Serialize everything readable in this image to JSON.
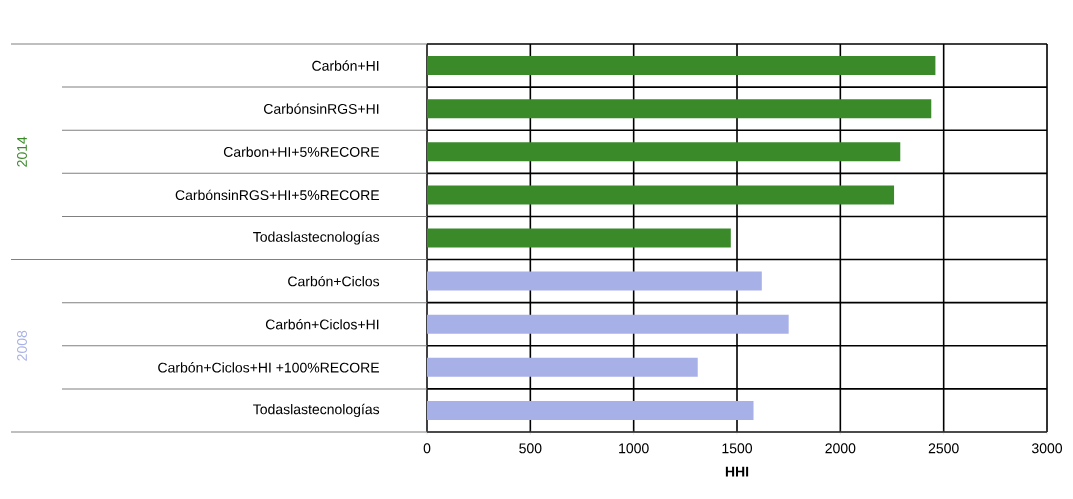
{
  "chart_data": {
    "type": "bar",
    "orientation": "horizontal",
    "xlabel": "HHI",
    "categories": [
      "Carbón+HI",
      "CarbónsinRGS+HI",
      "Carbon+HI+5%RECORE",
      "CarbónsinRGS+HI+5%RECORE",
      "Todaslastecnologías",
      "Carbón+Ciclos",
      "Carbón+Ciclos+HI",
      "Carbón+Ciclos+HI +100%RECORE",
      "Todaslastecnologías"
    ],
    "series": [
      {
        "name": "2014",
        "color": "#3a8a2a",
        "values": [
          2460,
          2440,
          2290,
          2260,
          1470,
          null,
          null,
          null,
          null
        ]
      },
      {
        "name": "2008",
        "color": "#a8b0e8",
        "values": [
          null,
          null,
          null,
          null,
          null,
          1620,
          1750,
          1310,
          1580
        ]
      }
    ],
    "xlim": [
      0,
      3000
    ],
    "xticks": [
      0,
      500,
      1000,
      1500,
      2000,
      2500,
      3000
    ],
    "grid": true,
    "legend": false
  }
}
